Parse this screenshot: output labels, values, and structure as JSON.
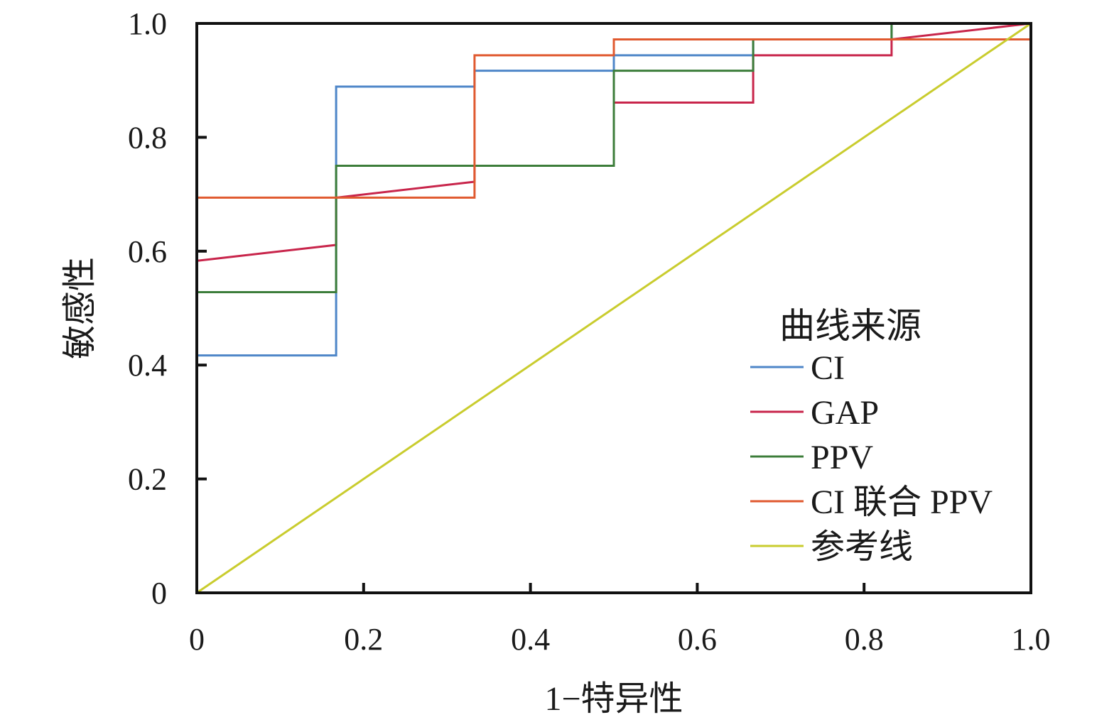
{
  "chart_data": {
    "type": "line",
    "title": "",
    "xlabel": "1−特异性",
    "ylabel": "敏感性",
    "xlim": [
      0,
      1
    ],
    "ylim": [
      0,
      1
    ],
    "grid": false,
    "legend_position": "bottom-right",
    "legend_title": "曲线来源",
    "x_ticks": [
      {
        "value": 0,
        "label": "0"
      },
      {
        "value": 0.2,
        "label": "0.2"
      },
      {
        "value": 0.4,
        "label": "0.4"
      },
      {
        "value": 0.6,
        "label": "0.6"
      },
      {
        "value": 0.8,
        "label": "0.8"
      },
      {
        "value": 1.0,
        "label": "1.0"
      }
    ],
    "y_ticks": [
      {
        "value": 0,
        "label": "0"
      },
      {
        "value": 0.2,
        "label": "0.2"
      },
      {
        "value": 0.4,
        "label": "0.4"
      },
      {
        "value": 0.6,
        "label": "0.6"
      },
      {
        "value": 0.8,
        "label": "0.8"
      },
      {
        "value": 1.0,
        "label": "1.0"
      }
    ],
    "series": [
      {
        "name": "CI",
        "color": "#4e86c8",
        "points": [
          [
            0,
            0
          ],
          [
            0,
            0.417
          ],
          [
            0.167,
            0.417
          ],
          [
            0.167,
            0.889
          ],
          [
            0.333,
            0.889
          ],
          [
            0.333,
            0.917
          ],
          [
            0.5,
            0.917
          ],
          [
            0.5,
            0.944
          ],
          [
            0.667,
            0.944
          ],
          [
            0.667,
            0.972
          ],
          [
            0.833,
            0.972
          ],
          [
            0.833,
            1.0
          ],
          [
            1.0,
            1.0
          ]
        ]
      },
      {
        "name": "GAP",
        "color": "#c8254b",
        "points": [
          [
            0,
            0
          ],
          [
            0,
            0.583
          ],
          [
            0.167,
            0.611
          ],
          [
            0.167,
            0.694
          ],
          [
            0.333,
            0.722
          ],
          [
            0.333,
            0.75
          ],
          [
            0.5,
            0.75
          ],
          [
            0.5,
            0.861
          ],
          [
            0.667,
            0.861
          ],
          [
            0.667,
            0.944
          ],
          [
            0.833,
            0.944
          ],
          [
            0.833,
            0.972
          ],
          [
            1.0,
            1.0
          ]
        ]
      },
      {
        "name": "PPV",
        "color": "#3c7d3a",
        "points": [
          [
            0,
            0
          ],
          [
            0,
            0.528
          ],
          [
            0.167,
            0.528
          ],
          [
            0.167,
            0.75
          ],
          [
            0.5,
            0.75
          ],
          [
            0.5,
            0.917
          ],
          [
            0.667,
            0.917
          ],
          [
            0.667,
            0.972
          ],
          [
            0.833,
            0.972
          ],
          [
            0.833,
            1.0
          ],
          [
            1.0,
            1.0
          ]
        ]
      },
      {
        "name": "CI 联合 PPV",
        "color": "#e0592f",
        "points": [
          [
            0,
            0
          ],
          [
            0,
            0.694
          ],
          [
            0.333,
            0.694
          ],
          [
            0.333,
            0.944
          ],
          [
            0.5,
            0.944
          ],
          [
            0.5,
            0.972
          ],
          [
            1.0,
            0.972
          ],
          [
            1.0,
            1.0
          ]
        ]
      },
      {
        "name": "参考线",
        "color": "#c9cc2e",
        "points": [
          [
            0,
            0
          ],
          [
            1,
            1
          ]
        ]
      }
    ]
  }
}
